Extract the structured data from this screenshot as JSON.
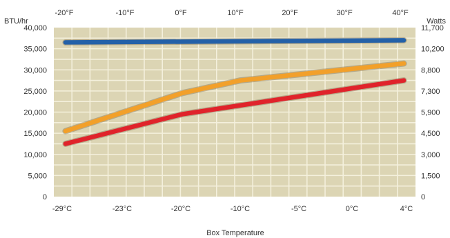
{
  "chart_data": {
    "type": "line",
    "xlabel": "Box Temperature",
    "ylabel_left": "BTU/hr",
    "ylabel_right": "Watts",
    "x_top_ticks": [
      "-20°F",
      "-10°F",
      "0°F",
      "10°F",
      "20°F",
      "30°F",
      "40°F"
    ],
    "x_bottom_ticks": [
      "-29°C",
      "-23°C",
      "-20°C",
      "-10°C",
      "-5°C",
      "0°C",
      "4°C"
    ],
    "x_domain": [
      -22,
      40
    ],
    "ylim": [
      0,
      40000
    ],
    "y_left_ticks": [
      {
        "value": 0,
        "label": "0"
      },
      {
        "value": 5000,
        "label": "5,000"
      },
      {
        "value": 10000,
        "label": "10,000"
      },
      {
        "value": 15000,
        "label": "15,000"
      },
      {
        "value": 20000,
        "label": "20,000"
      },
      {
        "value": 25000,
        "label": "25,000"
      },
      {
        "value": 30000,
        "label": "30,000"
      },
      {
        "value": 35000,
        "label": "35,000"
      },
      {
        "value": 40000,
        "label": "40,000"
      }
    ],
    "y_right_ticks": [
      "0",
      "1,500",
      "3,000",
      "4,500",
      "5,900",
      "7,300",
      "8,800",
      "10,200",
      "11,700"
    ],
    "grid": true,
    "background_color": "#dcd5b4",
    "grid_color": "#f4f0dc",
    "series": [
      {
        "color": "#2461a8",
        "x": [
          -20,
          38
        ],
        "y": [
          36500,
          37000
        ]
      },
      {
        "color": "#f2a02a",
        "x": [
          -20,
          0,
          10,
          38
        ],
        "y": [
          15500,
          24500,
          27500,
          31500
        ]
      },
      {
        "color": "#e0232b",
        "x": [
          -20,
          0,
          38
        ],
        "y": [
          12500,
          19500,
          27500
        ]
      }
    ]
  }
}
